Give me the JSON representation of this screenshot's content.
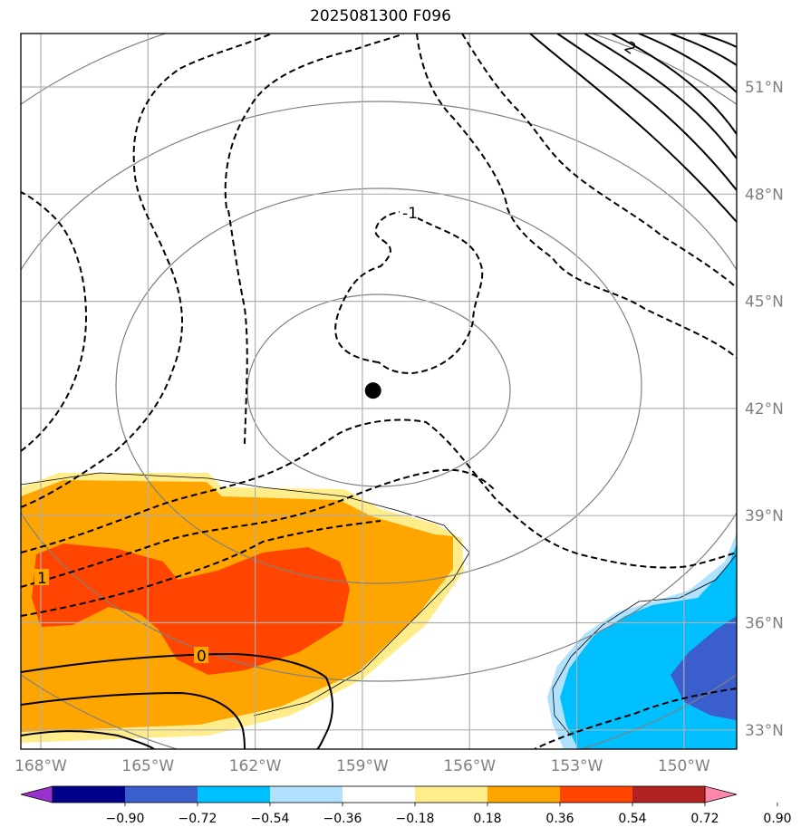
{
  "title": "2025081300 F096",
  "map": {
    "lon_labels": [
      "168°W",
      "165°W",
      "162°W",
      "159°W",
      "156°W",
      "153°W",
      "150°W"
    ],
    "lat_labels": [
      "51°N",
      "48°N",
      "45°N",
      "42°N",
      "39°N",
      "36°N",
      "33°N"
    ],
    "lon_values": [
      -168,
      -165,
      -162,
      -159,
      -156,
      -153,
      -150
    ],
    "lat_values": [
      51,
      48,
      45,
      42,
      39,
      36,
      33
    ],
    "center_marker": {
      "lon": -158.7,
      "lat": 42.5
    },
    "contour_labels": [
      "-1",
      "1",
      "0",
      "2"
    ]
  },
  "colorbar": {
    "tick_labels": [
      "−0.90",
      "−0.72",
      "−0.54",
      "−0.36",
      "−0.18",
      "0.18",
      "0.36",
      "0.54",
      "0.72",
      "0.90"
    ],
    "colors": [
      "#9932cc",
      "#00008b",
      "#3a5fcd",
      "#00bfff",
      "#b0e2ff",
      "#ffffff",
      "#ffec8b",
      "#ffa500",
      "#ff4500",
      "#b22222",
      "#ff88aa"
    ]
  },
  "fill_colors": {
    "yellow": "#ffec8b",
    "orange": "#ffa500",
    "red": "#ff4500",
    "lightblue": "#b0e2ff",
    "cyan": "#00bfff",
    "blue": "#3a5fcd"
  }
}
